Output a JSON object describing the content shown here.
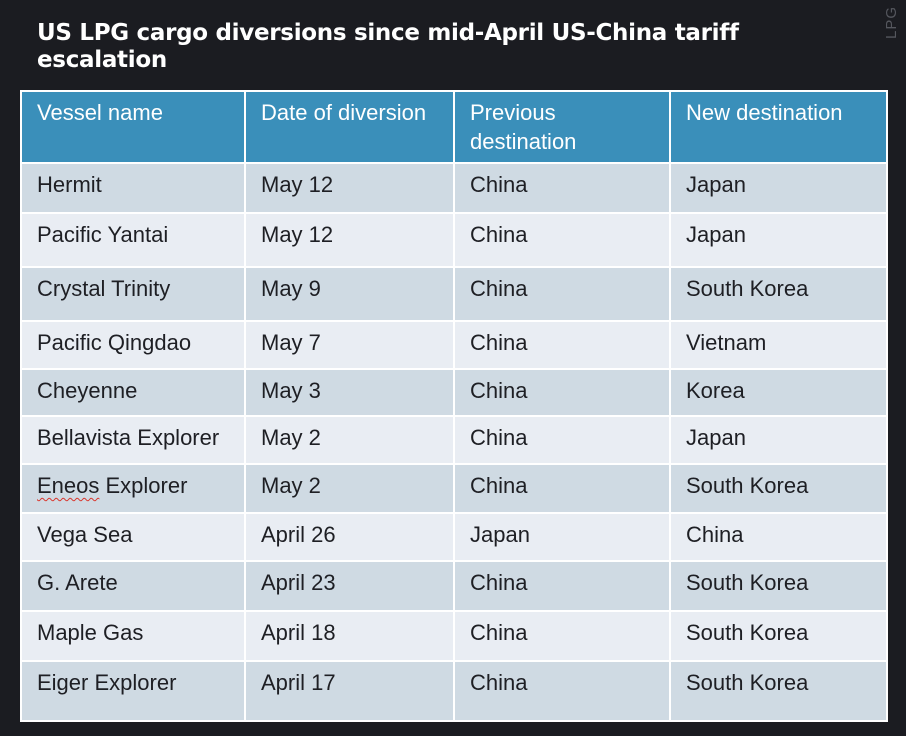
{
  "title": "US LPG cargo diversions since mid-April US-China tariff escalation",
  "side_tag": "LPG",
  "table": {
    "headers": [
      "Vessel name",
      "Date of diversion",
      "Previous destination",
      "New destination"
    ],
    "rows": [
      {
        "vessel": "Hermit",
        "date": "May 12",
        "previous": "China",
        "new": "Japan"
      },
      {
        "vessel": "Pacific Yantai",
        "date": "May 12",
        "previous": "China",
        "new": "Japan"
      },
      {
        "vessel": "Crystal Trinity",
        "date": "May 9",
        "previous": "China",
        "new": "South Korea"
      },
      {
        "vessel": "Pacific Qingdao",
        "date": "May 7",
        "previous": "China",
        "new": "Vietnam"
      },
      {
        "vessel": "Cheyenne",
        "date": "May 3",
        "previous": "China",
        "new": "Korea"
      },
      {
        "vessel": "Bellavista Explorer",
        "date": "May 2",
        "previous": "China",
        "new": "Japan"
      },
      {
        "vessel_word1": "Eneos",
        "vessel_word2": " Explorer",
        "date": "May 2",
        "previous": "China",
        "new": "South Korea"
      },
      {
        "vessel": "Vega Sea",
        "date": "April 26",
        "previous": "Japan",
        "new": "China"
      },
      {
        "vessel": "G. Arete",
        "date": "April 23",
        "previous": "China",
        "new": "South Korea"
      },
      {
        "vessel": "Maple Gas",
        "date": "April 18",
        "previous": "China",
        "new": "South Korea"
      },
      {
        "vessel": "Eiger Explorer",
        "date": "April 17",
        "previous": "China",
        "new": "South Korea"
      }
    ]
  },
  "colors": {
    "background": "#1b1c21",
    "header": "#3a8fba",
    "row_dark": "#cfdae3",
    "row_light": "#e9edf3"
  }
}
